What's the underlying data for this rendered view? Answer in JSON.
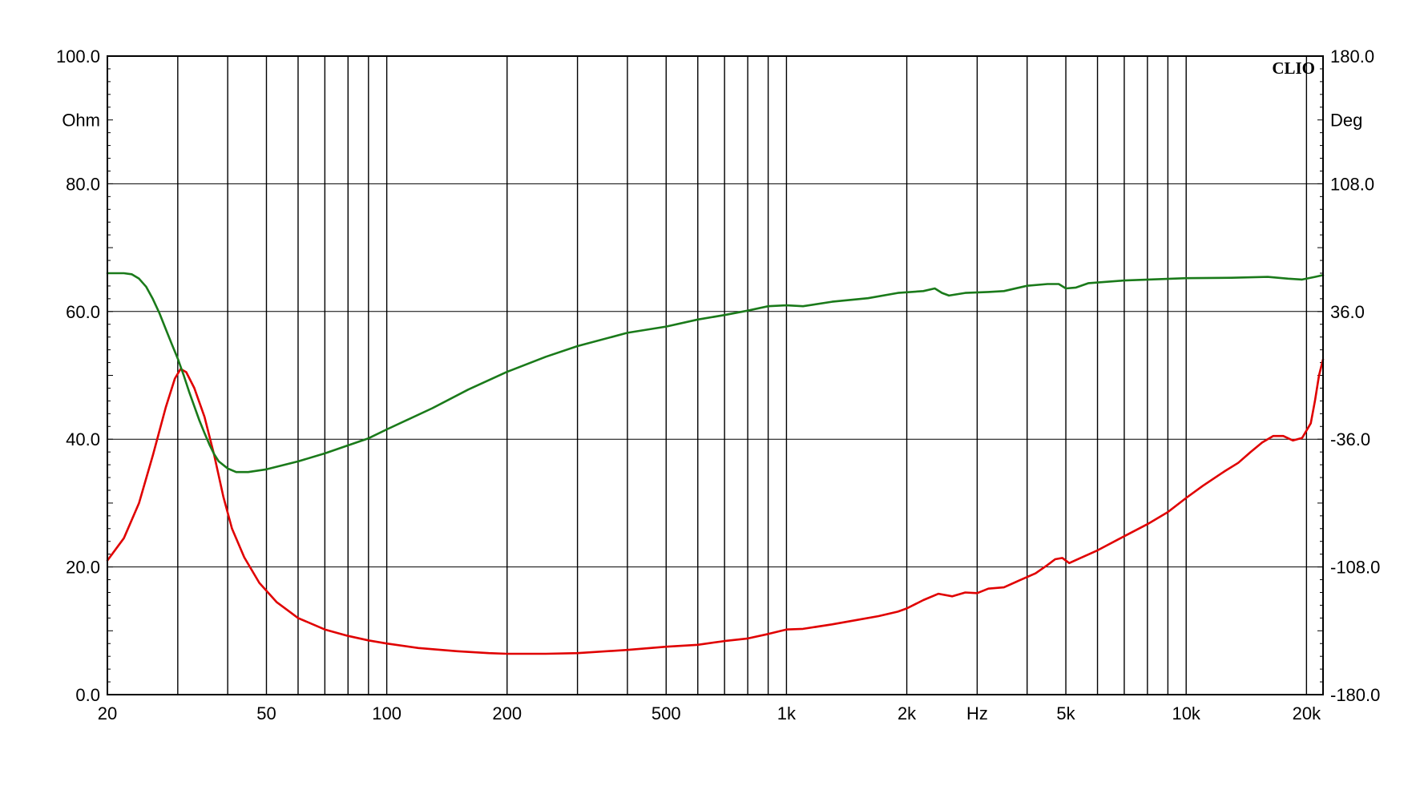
{
  "chart_data": {
    "type": "line",
    "brand": "CLIO",
    "x_scale": "log",
    "xlim": [
      20,
      22000
    ],
    "x_tick_labels": [
      {
        "value": 20,
        "label": "20"
      },
      {
        "value": 50,
        "label": "50"
      },
      {
        "value": 100,
        "label": "100"
      },
      {
        "value": 200,
        "label": "200"
      },
      {
        "value": 500,
        "label": "500"
      },
      {
        "value": 1000,
        "label": "1k"
      },
      {
        "value": 2000,
        "label": "2k"
      },
      {
        "value": 5000,
        "label": "5k"
      },
      {
        "value": 10000,
        "label": "10k"
      },
      {
        "value": 20000,
        "label": "20k"
      }
    ],
    "x_unit_label": "Hz",
    "x_unit_position_value": 3000,
    "x_gridlines": [
      30,
      40,
      50,
      60,
      70,
      80,
      90,
      100,
      200,
      300,
      400,
      500,
      600,
      700,
      800,
      900,
      1000,
      2000,
      3000,
      4000,
      5000,
      6000,
      7000,
      8000,
      9000,
      10000,
      20000
    ],
    "y_left": {
      "unit": "Ohm",
      "ylim": [
        0,
        100
      ],
      "ticks": [
        {
          "value": 0,
          "label": "0.0"
        },
        {
          "value": 20,
          "label": "20.0"
        },
        {
          "value": 40,
          "label": "40.0"
        },
        {
          "value": 60,
          "label": "60.0"
        },
        {
          "value": 80,
          "label": "80.0"
        },
        {
          "value": 100,
          "label": "100.0"
        }
      ],
      "unit_position_value": 90
    },
    "y_right": {
      "unit": "Deg",
      "ylim": [
        -180,
        180
      ],
      "ticks": [
        {
          "value": -180,
          "label": "-180.0"
        },
        {
          "value": -108,
          "label": "-108.0"
        },
        {
          "value": -36,
          "label": "-36.0"
        },
        {
          "value": 36,
          "label": "36.0"
        },
        {
          "value": 108,
          "label": "108.0"
        },
        {
          "value": 180,
          "label": "180.0"
        }
      ],
      "unit_position_value": 144
    },
    "grid": true,
    "series": [
      {
        "axis": "left",
        "color": "#e00000",
        "points": [
          [
            20,
            21.0
          ],
          [
            22,
            24.5
          ],
          [
            24,
            30.0
          ],
          [
            26,
            37.5
          ],
          [
            28,
            45.0
          ],
          [
            29.5,
            49.5
          ],
          [
            30.5,
            51.0
          ],
          [
            31.5,
            50.5
          ],
          [
            33,
            48.0
          ],
          [
            35,
            43.5
          ],
          [
            37,
            37.5
          ],
          [
            39,
            31.0
          ],
          [
            41,
            26.0
          ],
          [
            44,
            21.5
          ],
          [
            48,
            17.5
          ],
          [
            53,
            14.5
          ],
          [
            60,
            12.0
          ],
          [
            70,
            10.2
          ],
          [
            80,
            9.2
          ],
          [
            90,
            8.5
          ],
          [
            100,
            8.0
          ],
          [
            120,
            7.3
          ],
          [
            150,
            6.8
          ],
          [
            180,
            6.5
          ],
          [
            200,
            6.4
          ],
          [
            250,
            6.4
          ],
          [
            300,
            6.5
          ],
          [
            400,
            7.0
          ],
          [
            500,
            7.5
          ],
          [
            600,
            7.8
          ],
          [
            700,
            8.4
          ],
          [
            800,
            8.8
          ],
          [
            900,
            9.5
          ],
          [
            1000,
            10.2
          ],
          [
            1100,
            10.3
          ],
          [
            1300,
            11.0
          ],
          [
            1500,
            11.7
          ],
          [
            1700,
            12.3
          ],
          [
            1900,
            13.0
          ],
          [
            2000,
            13.5
          ],
          [
            2200,
            14.8
          ],
          [
            2400,
            15.8
          ],
          [
            2600,
            15.4
          ],
          [
            2800,
            16.0
          ],
          [
            3000,
            15.9
          ],
          [
            3200,
            16.6
          ],
          [
            3500,
            16.8
          ],
          [
            3800,
            17.8
          ],
          [
            4200,
            19.0
          ],
          [
            4500,
            20.3
          ],
          [
            4700,
            21.2
          ],
          [
            4900,
            21.4
          ],
          [
            5100,
            20.6
          ],
          [
            5400,
            21.3
          ],
          [
            6000,
            22.6
          ],
          [
            7000,
            24.8
          ],
          [
            8000,
            26.7
          ],
          [
            9000,
            28.6
          ],
          [
            10000,
            30.8
          ],
          [
            11000,
            32.7
          ],
          [
            12500,
            35.0
          ],
          [
            13500,
            36.3
          ],
          [
            14500,
            38.0
          ],
          [
            15500,
            39.5
          ],
          [
            16500,
            40.5
          ],
          [
            17500,
            40.5
          ],
          [
            18500,
            39.8
          ],
          [
            19500,
            40.2
          ],
          [
            20500,
            42.5
          ],
          [
            21000,
            46.0
          ],
          [
            21500,
            50.0
          ],
          [
            22000,
            52.5
          ]
        ]
      },
      {
        "axis": "right",
        "color": "#1a7a1a",
        "points": [
          [
            20,
            57.6
          ],
          [
            22,
            57.6
          ],
          [
            23,
            57.0
          ],
          [
            24,
            54.5
          ],
          [
            25,
            50.0
          ],
          [
            26,
            43.0
          ],
          [
            27,
            35.0
          ],
          [
            28,
            26.0
          ],
          [
            29,
            17.5
          ],
          [
            30,
            9.5
          ],
          [
            31,
            0.5
          ],
          [
            32,
            -9.0
          ],
          [
            33,
            -17.5
          ],
          [
            34,
            -25.5
          ],
          [
            35,
            -32.5
          ],
          [
            36,
            -39.0
          ],
          [
            37,
            -44.5
          ],
          [
            38,
            -48.5
          ],
          [
            40,
            -52.5
          ],
          [
            42,
            -54.5
          ],
          [
            45,
            -54.5
          ],
          [
            50,
            -53.0
          ],
          [
            60,
            -48.5
          ],
          [
            70,
            -44.0
          ],
          [
            80,
            -39.5
          ],
          [
            90,
            -35.5
          ],
          [
            100,
            -30.5
          ],
          [
            130,
            -18.5
          ],
          [
            160,
            -8.0
          ],
          [
            200,
            2.0
          ],
          [
            250,
            10.5
          ],
          [
            300,
            16.5
          ],
          [
            400,
            24.0
          ],
          [
            500,
            27.5
          ],
          [
            600,
            31.5
          ],
          [
            700,
            34.0
          ],
          [
            800,
            36.5
          ],
          [
            900,
            39.0
          ],
          [
            1000,
            39.5
          ],
          [
            1100,
            39.0
          ],
          [
            1300,
            41.5
          ],
          [
            1600,
            43.5
          ],
          [
            1900,
            46.5
          ],
          [
            2200,
            47.5
          ],
          [
            2350,
            49.0
          ],
          [
            2450,
            46.5
          ],
          [
            2550,
            45.0
          ],
          [
            2800,
            46.5
          ],
          [
            3200,
            47.0
          ],
          [
            3500,
            47.5
          ],
          [
            4000,
            50.5
          ],
          [
            4500,
            51.5
          ],
          [
            4800,
            51.5
          ],
          [
            5000,
            49.0
          ],
          [
            5300,
            49.5
          ],
          [
            5700,
            52.0
          ],
          [
            7000,
            53.5
          ],
          [
            10000,
            54.8
          ],
          [
            13000,
            55.0
          ],
          [
            16000,
            55.5
          ],
          [
            18000,
            54.5
          ],
          [
            19500,
            54.0
          ],
          [
            21000,
            55.5
          ],
          [
            22000,
            56.5
          ]
        ]
      }
    ]
  }
}
